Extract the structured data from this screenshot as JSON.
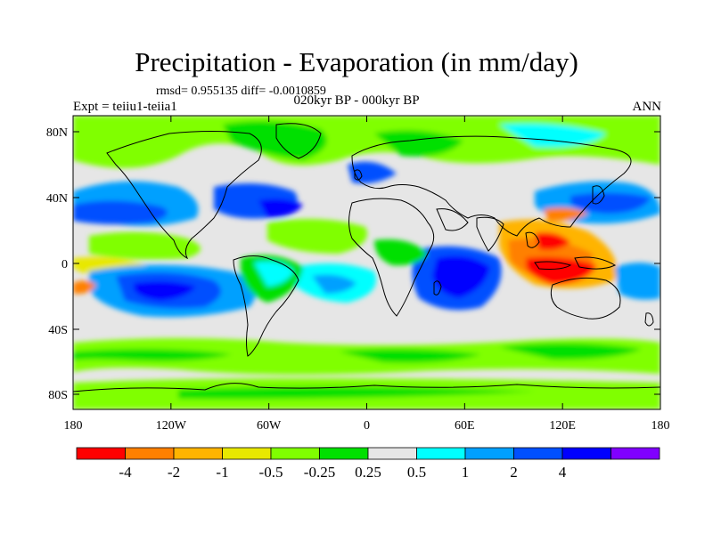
{
  "title": "Precipitation - Evaporation (in mm/day)",
  "stats": "rmsd= 0.955135 diff= -0.0010859",
  "subtitle": "020kyr BP - 000kyr BP",
  "left_label": "Expt = teiiu1-teiia1",
  "right_label": "ANN",
  "lat_ticks": [
    "80N",
    "40N",
    "0",
    "40S",
    "80S"
  ],
  "lon_ticks": [
    "180",
    "120W",
    "60W",
    "0",
    "60E",
    "120E",
    "180"
  ],
  "colorbar": {
    "colors": [
      "#ff0000",
      "#ff8000",
      "#ffb400",
      "#e8e800",
      "#80ff00",
      "#00e000",
      "#e6e6e6",
      "#00ffff",
      "#00a0ff",
      "#0050ff",
      "#0000ff",
      "#8000ff"
    ],
    "labels": [
      "-4",
      "-2",
      "-1",
      "-0.5",
      "-0.25",
      "0.25",
      "0.5",
      "1",
      "2",
      "4"
    ]
  }
}
